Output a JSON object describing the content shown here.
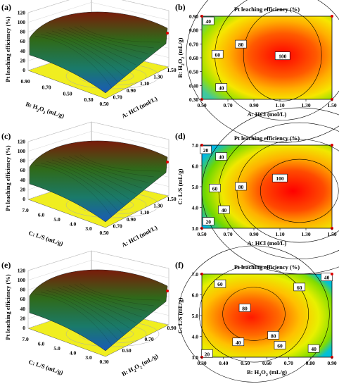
{
  "figure": {
    "panels": [
      {
        "letter": "(a)",
        "kind": "surface",
        "zlabel": "Pt leaching efficiency (%)",
        "zticks": [
          "0",
          "20",
          "40",
          "60",
          "80",
          "100",
          "120"
        ],
        "left_axis_label": "B: H",
        "left_axis_sub": "2",
        "left_axis_label2": "O",
        "left_axis_sub2": "2",
        "left_axis_label3": " (mL/g)",
        "left_ticks": [
          "0.90",
          "0.70",
          "0.50",
          "0.30"
        ],
        "right_axis_label": "A: HCl (mol/L)",
        "right_ticks": [
          "0.50",
          "0.70",
          "0.90",
          "1.10",
          "1.30",
          "1.50"
        ]
      },
      {
        "letter": "(b)",
        "kind": "contour",
        "title": "Pt leaching efficiency (%)",
        "xlabel": "A: HCl (mol/L)",
        "ylabel_parts": [
          "B: H",
          "2",
          "O",
          "2",
          " (mL/g)"
        ],
        "xticks": [
          "0.50",
          "0.70",
          "0.90",
          "1.10",
          "1.30",
          "1.50"
        ],
        "yticks": [
          "0.30",
          "0.40",
          "0.50",
          "0.60",
          "0.70",
          "0.80",
          "0.90"
        ],
        "contour_labels": [
          "40",
          "60",
          "80",
          "100",
          "40"
        ]
      },
      {
        "letter": "(c)",
        "kind": "surface",
        "zlabel": "Pt leaching efficiency (%)",
        "zticks": [
          "0",
          "20",
          "40",
          "60",
          "80",
          "100",
          "120"
        ],
        "left_axis_label": "C: L/S (mL/g)",
        "left_ticks": [
          "7.0",
          "6.0",
          "5.0",
          "4.0",
          "3.0"
        ],
        "right_axis_label": "A: HCl (mol/L)",
        "right_ticks": [
          "0.50",
          "0.70",
          "0.90",
          "1.10",
          "1.30",
          "1.50"
        ]
      },
      {
        "letter": "(d)",
        "kind": "contour",
        "title": "Pt leaching efficiency (%)",
        "xlabel": "A: HCl (mol/L)",
        "ylabel_parts": [
          "C: L/S (mL/g)"
        ],
        "xticks": [
          "0.50",
          "0.70",
          "0.90",
          "1.10",
          "1.30",
          "1.50"
        ],
        "yticks": [
          "3.0",
          "4.0",
          "5.0",
          "6.0",
          "7.0"
        ],
        "contour_labels": [
          "20",
          "40",
          "60",
          "80",
          "100",
          "20",
          "40"
        ]
      },
      {
        "letter": "(e)",
        "kind": "surface",
        "zlabel": "Pt leaching efficiency (%)",
        "zticks": [
          "0",
          "20",
          "40",
          "60",
          "80",
          "100",
          "120"
        ],
        "left_axis_label": "C: L/S (mL/g)",
        "left_ticks": [
          "7.0",
          "6.0",
          "5.0",
          "4.0",
          "3.0"
        ],
        "right_axis_label": "B: H",
        "right_axis_parts": [
          "B: H",
          "2",
          "O",
          "2",
          " (mL/g)"
        ],
        "right_ticks": [
          "0.30",
          "0.50",
          "0.70",
          "0.90"
        ]
      },
      {
        "letter": "(f)",
        "kind": "contour",
        "title": "Pt leaching efficiency (%)",
        "xlabel_parts": [
          "B: H",
          "2",
          "O",
          "2",
          " (mL/g)"
        ],
        "ylabel_parts": [
          "C: L/S (mL/g)"
        ],
        "xticks": [
          "0.30",
          "0.40",
          "0.50",
          "0.60",
          "0.70",
          "0.80",
          "0.90"
        ],
        "yticks": [
          "3.0",
          "4.0",
          "5.0",
          "6.0",
          "7.0"
        ],
        "contour_labels": [
          "60",
          "60",
          "40",
          "80",
          "80",
          "40",
          "60",
          "40",
          "20"
        ]
      }
    ]
  },
  "chart_data": [
    {
      "type": "surface",
      "response": "Pt leaching efficiency (%)",
      "x_factor": "A: HCl (mol/L)",
      "y_factor": "B: H2O2 (mL/g)",
      "x_range": [
        0.5,
        1.5
      ],
      "y_range": [
        0.3,
        0.9
      ],
      "z_range": [
        0,
        120
      ]
    },
    {
      "type": "contour",
      "response": "Pt leaching efficiency (%)",
      "x_factor": "A: HCl (mol/L)",
      "y_factor": "B: H2O2 (mL/g)",
      "x_range": [
        0.5,
        1.5
      ],
      "y_range": [
        0.3,
        0.9
      ],
      "contour_levels": [
        40,
        60,
        80,
        100
      ]
    },
    {
      "type": "surface",
      "response": "Pt leaching efficiency (%)",
      "x_factor": "A: HCl (mol/L)",
      "y_factor": "C: L/S (mL/g)",
      "x_range": [
        0.5,
        1.5
      ],
      "y_range": [
        3.0,
        7.0
      ],
      "z_range": [
        0,
        120
      ]
    },
    {
      "type": "contour",
      "response": "Pt leaching efficiency (%)",
      "x_factor": "A: HCl (mol/L)",
      "y_factor": "C: L/S (mL/g)",
      "x_range": [
        0.5,
        1.5
      ],
      "y_range": [
        3.0,
        7.0
      ],
      "contour_levels": [
        20,
        40,
        60,
        80,
        100
      ]
    },
    {
      "type": "surface",
      "response": "Pt leaching efficiency (%)",
      "x_factor": "B: H2O2 (mL/g)",
      "y_factor": "C: L/S (mL/g)",
      "x_range": [
        0.3,
        0.9
      ],
      "y_range": [
        3.0,
        7.0
      ],
      "z_range": [
        0,
        120
      ]
    },
    {
      "type": "contour",
      "response": "Pt leaching efficiency (%)",
      "x_factor": "B: H2O2 (mL/g)",
      "y_factor": "C: L/S (mL/g)",
      "x_range": [
        0.3,
        0.9
      ],
      "y_range": [
        3.0,
        7.0
      ],
      "contour_levels": [
        20,
        40,
        60,
        80
      ]
    }
  ]
}
